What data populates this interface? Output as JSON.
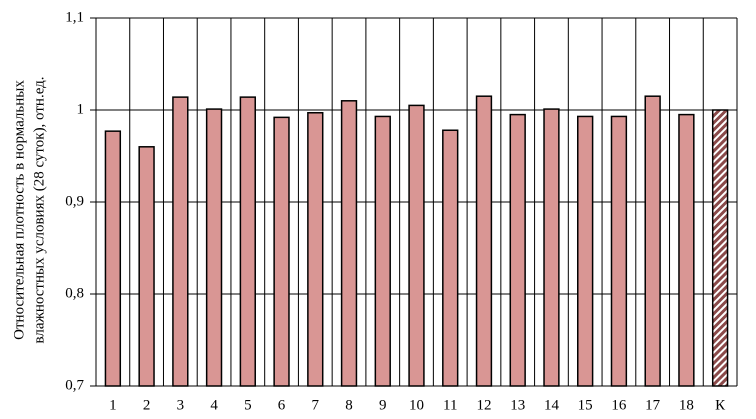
{
  "chart_data": {
    "type": "bar",
    "ylabel": [
      "Относительная плотность в нормальных",
      "влажностных условиях (28 суток), отн.ед."
    ],
    "categories": [
      "1",
      "2",
      "3",
      "4",
      "5",
      "6",
      "7",
      "8",
      "9",
      "10",
      "11",
      "12",
      "13",
      "14",
      "15",
      "16",
      "17",
      "18",
      "К"
    ],
    "values": [
      0.977,
      0.96,
      1.014,
      1.001,
      1.014,
      0.992,
      0.997,
      1.01,
      0.993,
      1.005,
      0.978,
      1.015,
      0.995,
      1.001,
      0.993,
      0.993,
      1.015,
      0.995,
      1.0
    ],
    "color": "#d99694",
    "hatched_categories": [
      "К"
    ],
    "hatch_color": "#8b4a4a",
    "ylim": [
      0.7,
      1.1
    ],
    "yticks": [
      {
        "value": 0.7,
        "label": "0,7"
      },
      {
        "value": 0.8,
        "label": "0,8"
      },
      {
        "value": 0.9,
        "label": "0,9"
      },
      {
        "value": 1,
        "label": "1"
      },
      {
        "value": 1.1,
        "label": "1,1"
      }
    ],
    "grid": true
  }
}
